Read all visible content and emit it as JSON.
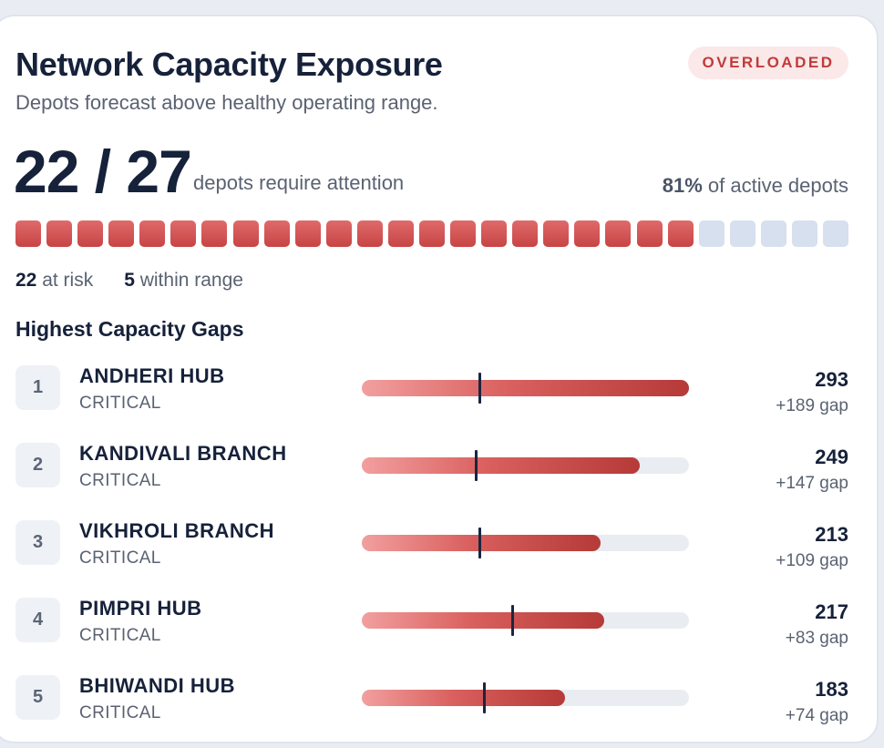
{
  "header": {
    "title": "Network Capacity Exposure",
    "subtitle": "Depots forecast above healthy operating range.",
    "badge": "OVERLOADED"
  },
  "summary": {
    "count_text": "22 / 27",
    "caption": "depots require attention",
    "percent": "81%",
    "percent_caption": " of active depots",
    "at_risk": 22,
    "total": 27,
    "at_risk_value": "22",
    "at_risk_label": " at risk",
    "within_value": "5",
    "within_label": " within range",
    "risk_color": "#d05050",
    "ok_color": "#d6e0ee"
  },
  "section_title": "Highest Capacity Gaps",
  "depots": [
    {
      "rank": "1",
      "name": "ANDHERI HUB",
      "status": "CRITICAL",
      "value": "293",
      "gap": "+189 gap",
      "fill": 1.0,
      "marker": 0.36
    },
    {
      "rank": "2",
      "name": "KANDIVALI BRANCH",
      "status": "CRITICAL",
      "value": "249",
      "gap": "+147 gap",
      "fill": 0.85,
      "marker": 0.35
    },
    {
      "rank": "3",
      "name": "VIKHROLI BRANCH",
      "status": "CRITICAL",
      "value": "213",
      "gap": "+109 gap",
      "fill": 0.73,
      "marker": 0.36
    },
    {
      "rank": "4",
      "name": "PIMPRI HUB",
      "status": "CRITICAL",
      "value": "217",
      "gap": "+83 gap",
      "fill": 0.74,
      "marker": 0.46
    },
    {
      "rank": "5",
      "name": "BHIWANDI HUB",
      "status": "CRITICAL",
      "value": "183",
      "gap": "+74 gap",
      "fill": 0.62,
      "marker": 0.375
    }
  ]
}
